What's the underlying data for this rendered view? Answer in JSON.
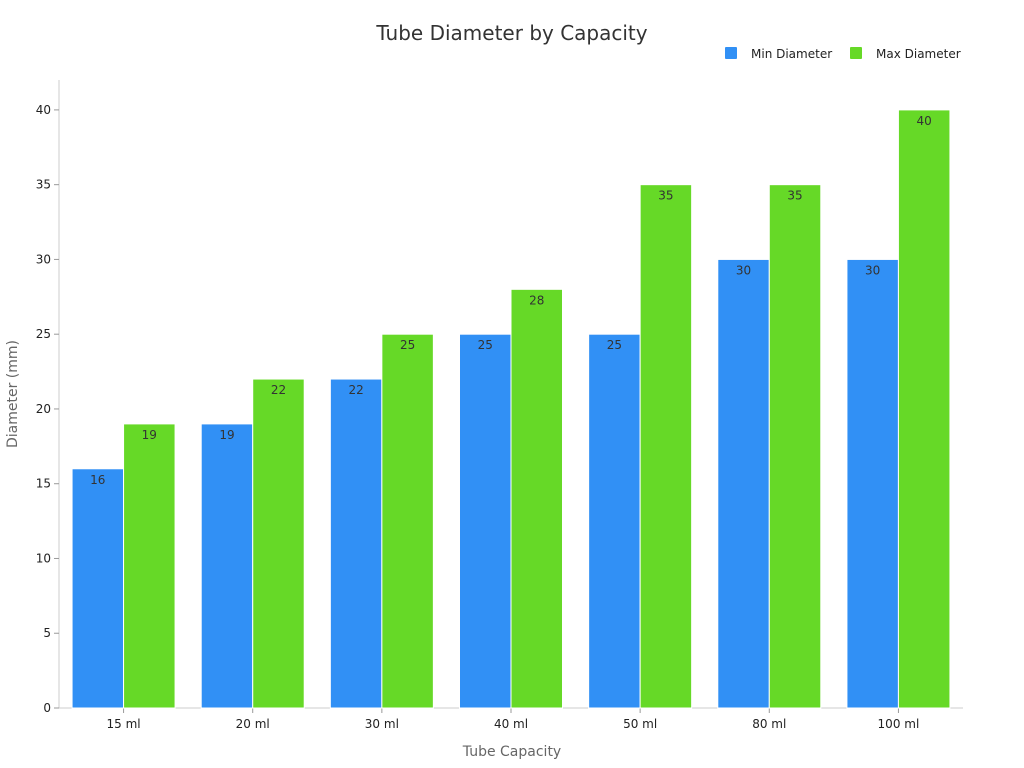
{
  "chart_data": {
    "type": "bar",
    "title": "Tube Diameter by Capacity",
    "xlabel": "Tube Capacity",
    "ylabel": "Diameter (mm)",
    "categories": [
      "15 ml",
      "20 ml",
      "30 ml",
      "40 ml",
      "50 ml",
      "80 ml",
      "100 ml"
    ],
    "series": [
      {
        "name": "Min Diameter",
        "color": "#3190f5",
        "values": [
          16,
          19,
          22,
          25,
          25,
          30,
          30
        ]
      },
      {
        "name": "Max Diameter",
        "color": "#66d927",
        "values": [
          19,
          22,
          25,
          28,
          35,
          35,
          40
        ]
      }
    ],
    "ylim": [
      0,
      42
    ],
    "yticks": [
      0,
      5,
      10,
      15,
      20,
      25,
      30,
      35,
      40
    ],
    "grid": false,
    "legend": "top-right",
    "data_labels": true
  }
}
